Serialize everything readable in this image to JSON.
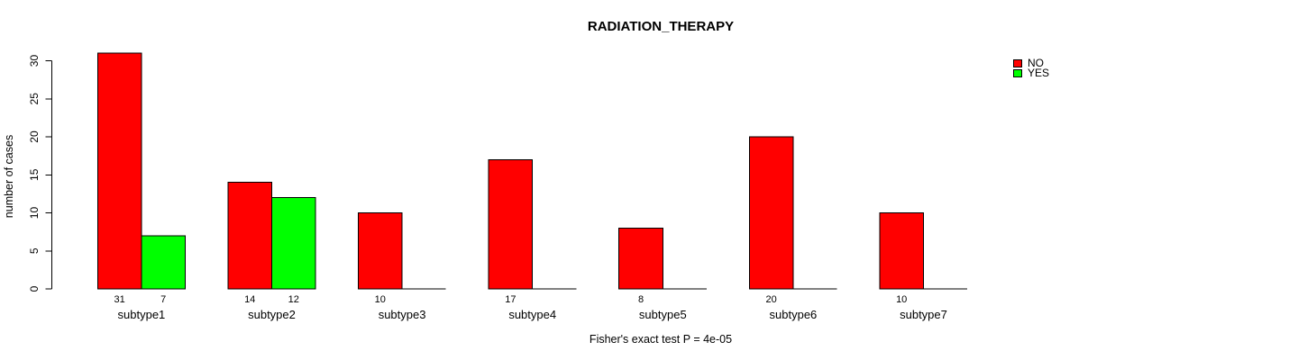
{
  "chart_data": {
    "type": "bar",
    "title": "RADIATION_THERAPY",
    "xlabel": "",
    "ylabel": "number of cases",
    "annotation": "Fisher's exact test P = 4e-05",
    "categories": [
      "subtype1",
      "subtype2",
      "subtype3",
      "subtype4",
      "subtype5",
      "subtype6",
      "subtype7"
    ],
    "series": [
      {
        "name": "NO",
        "color": "#ff0000",
        "values": [
          31,
          14,
          10,
          17,
          8,
          20,
          10
        ]
      },
      {
        "name": "YES",
        "color": "#00ff00",
        "values": [
          7,
          12,
          0,
          0,
          0,
          0,
          0
        ]
      }
    ],
    "yticks": [
      0,
      5,
      10,
      15,
      20,
      25,
      30
    ],
    "ylim": [
      0,
      31
    ],
    "grid": false,
    "legend_position": "top-right-outside",
    "bar_border_color": "#000000",
    "axis_color": "#000000",
    "text_color": "#000000",
    "background_color": "#ffffff"
  }
}
